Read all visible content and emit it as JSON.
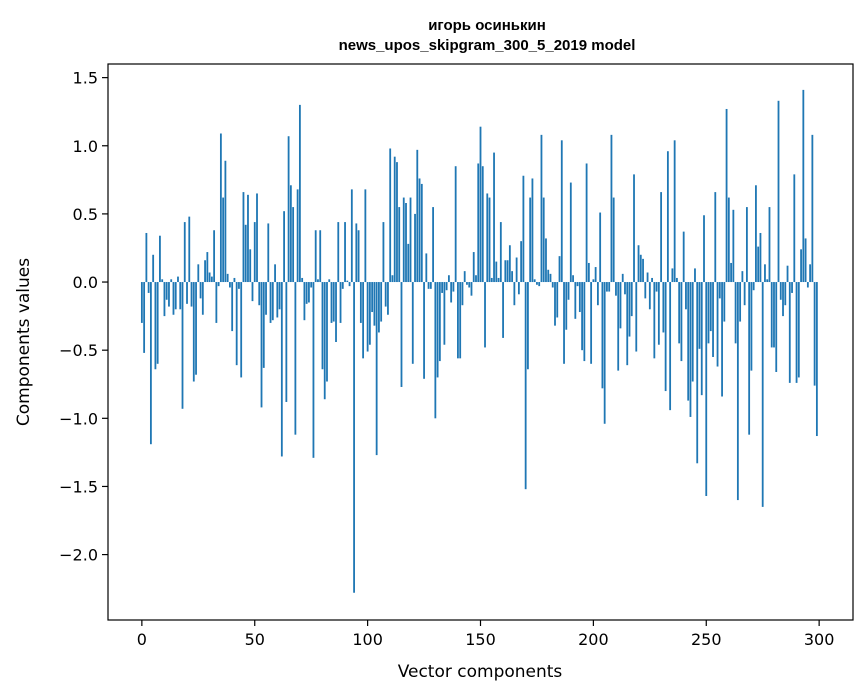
{
  "chart_data": {
    "type": "bar",
    "title_lines": [
      "игорь осинькин",
      "news_upos_skipgram_300_5_2019 model"
    ],
    "xlabel": "Vector components",
    "ylabel": "Components values",
    "xlim": [
      -15,
      315
    ],
    "ylim": [
      -2.48,
      1.6
    ],
    "x_ticks": [
      0,
      50,
      100,
      150,
      200,
      250,
      300
    ],
    "x_tick_labels": [
      "0",
      "50",
      "100",
      "150",
      "200",
      "250",
      "300"
    ],
    "y_ticks": [
      -2.0,
      -1.5,
      -1.0,
      -0.5,
      0.0,
      0.5,
      1.0,
      1.5
    ],
    "y_tick_labels": [
      "−2.0",
      "−1.5",
      "−1.0",
      "−0.5",
      "0.0",
      "0.5",
      "1.0",
      "1.5"
    ],
    "bar_color": "#1f77b4",
    "grid": false,
    "series": [
      {
        "name": "components",
        "values": [
          -0.3,
          -0.52,
          0.36,
          -0.08,
          -1.19,
          0.2,
          -0.64,
          -0.6,
          0.34,
          0.02,
          -0.25,
          -0.13,
          -0.18,
          0.02,
          -0.24,
          -0.2,
          0.04,
          -0.2,
          -0.93,
          0.44,
          -0.16,
          0.48,
          -0.18,
          -0.73,
          -0.68,
          0.13,
          -0.12,
          -0.24,
          0.16,
          0.22,
          0.07,
          0.04,
          0.38,
          -0.3,
          -0.03,
          1.09,
          0.62,
          0.89,
          0.06,
          -0.04,
          -0.36,
          0.03,
          -0.61,
          -0.05,
          -0.7,
          0.66,
          0.42,
          0.64,
          0.24,
          -0.14,
          0.44,
          0.65,
          -0.17,
          -0.92,
          -0.63,
          -0.24,
          0.43,
          -0.3,
          -0.28,
          0.13,
          -0.26,
          -0.2,
          -1.28,
          0.52,
          -0.88,
          1.07,
          0.71,
          0.55,
          -1.12,
          0.68,
          1.3,
          0.03,
          -0.28,
          -0.16,
          -0.15,
          -0.04,
          -1.29,
          0.38,
          0.02,
          0.38,
          -0.64,
          -0.86,
          -0.73,
          0.02,
          -0.3,
          -0.29,
          -0.44,
          0.44,
          -0.3,
          -0.05,
          0.44,
          0.01,
          -0.03,
          0.68,
          -2.28,
          0.43,
          0.38,
          -0.3,
          -0.56,
          0.68,
          -0.51,
          -0.46,
          -0.22,
          -0.32,
          -1.27,
          -0.37,
          -0.29,
          0.44,
          -0.18,
          -0.24,
          0.98,
          0.05,
          0.92,
          0.88,
          0.55,
          -0.77,
          0.62,
          0.58,
          0.28,
          0.62,
          -0.6,
          0.5,
          0.97,
          0.76,
          0.72,
          -0.71,
          0.21,
          -0.05,
          -0.05,
          0.55,
          -1.0,
          -0.7,
          -0.58,
          -0.08,
          -0.46,
          -0.06,
          0.05,
          -0.15,
          -0.07,
          0.85,
          -0.56,
          -0.56,
          -0.17,
          0.08,
          -0.02,
          -0.04,
          -0.1,
          0.22,
          0.05,
          0.87,
          1.14,
          0.85,
          -0.48,
          0.65,
          0.62,
          0.03,
          0.95,
          0.15,
          0.03,
          0.44,
          -0.41,
          0.16,
          0.16,
          0.27,
          0.08,
          -0.17,
          0.18,
          -0.09,
          0.3,
          0.78,
          -1.52,
          -0.64,
          0.62,
          0.76,
          0.02,
          -0.02,
          -0.03,
          1.08,
          0.62,
          0.32,
          0.09,
          0.06,
          -0.04,
          -0.32,
          -0.26,
          0.19,
          1.04,
          -0.6,
          -0.35,
          -0.13,
          0.73,
          0.05,
          -0.27,
          -0.03,
          -0.22,
          -0.5,
          -0.58,
          0.87,
          0.14,
          -0.6,
          0.02,
          0.11,
          -0.17,
          0.51,
          -0.78,
          -1.04,
          -0.07,
          -0.07,
          1.08,
          0.62,
          -0.1,
          -0.65,
          -0.34,
          0.06,
          -0.09,
          -0.61,
          -0.4,
          -0.25,
          0.79,
          -0.51,
          0.27,
          0.2,
          0.17,
          -0.12,
          0.07,
          -0.2,
          0.03,
          -0.56,
          -0.07,
          -0.46,
          0.66,
          -0.37,
          -0.8,
          0.96,
          -0.94,
          0.1,
          1.04,
          0.03,
          -0.45,
          -0.58,
          0.37,
          -0.2,
          -0.87,
          -0.99,
          -0.73,
          0.1,
          -1.33,
          -0.49,
          -0.83,
          0.49,
          -1.57,
          -0.45,
          -0.36,
          -0.55,
          0.66,
          -0.62,
          -0.12,
          -0.84,
          -0.29,
          1.27,
          0.62,
          0.14,
          0.53,
          -0.45,
          -1.6,
          -0.29,
          0.08,
          -0.17,
          0.55,
          -1.12,
          -0.65,
          -0.06,
          0.71,
          0.26,
          0.36,
          -1.65,
          0.13,
          0.02,
          0.55,
          -0.48,
          -0.48,
          -0.66,
          1.33,
          -0.13,
          -0.25,
          -0.17,
          0.12,
          -0.74,
          -0.08,
          0.79,
          -0.74,
          -0.7,
          0.24,
          1.41,
          0.32,
          -0.04,
          0.13,
          1.08,
          -0.76,
          -1.13
        ]
      }
    ]
  }
}
